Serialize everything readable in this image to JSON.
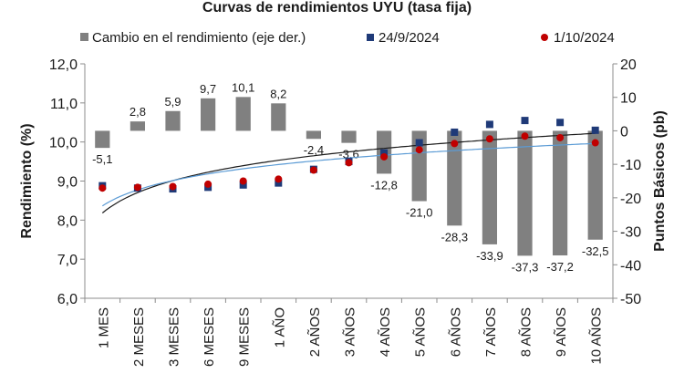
{
  "chart_data": {
    "type": "bar+scatter",
    "title": "Curvas de rendimientos UYU (tasa fija)",
    "categories": [
      "1 MES",
      "2 MESES",
      "3 MESES",
      "6 MESES",
      "9 MESES",
      "1 AÑO",
      "2 AÑOS",
      "3 AÑOS",
      "4 AÑOS",
      "5 AÑOS",
      "6 AÑOS",
      "7 AÑOS",
      "8 AÑOS",
      "9 AÑOS",
      "10 AÑOS"
    ],
    "ylabel": "Rendimiento (%)",
    "y2label": "Puntos Básicos (pb)",
    "ylim": [
      6.0,
      12.0
    ],
    "yticks": [
      "6,0",
      "7,0",
      "8,0",
      "9,0",
      "10,0",
      "11,0",
      "12,0"
    ],
    "y2lim": [
      -50,
      20
    ],
    "y2ticks": [
      "-50",
      "-40",
      "-30",
      "-20",
      "-10",
      "0",
      "10",
      "20"
    ],
    "legend_position": "top",
    "series": [
      {
        "name": "Cambio en el rendimiento (eje der.)",
        "kind": "bar",
        "axis": "right",
        "color": "#808080",
        "values": [
          -5.1,
          2.8,
          5.9,
          9.7,
          10.1,
          8.2,
          -2.4,
          -3.6,
          -12.8,
          -21.0,
          -28.3,
          -33.9,
          -37.3,
          -37.2,
          -32.5
        ],
        "labels": [
          "-5,1",
          "2,8",
          "5,9",
          "9,7",
          "10,1",
          "8,2",
          "-2,4",
          "-3,6",
          "-12,8",
          "-21,0",
          "-28,3",
          "-33,9",
          "-37,3",
          "-37,2",
          "-32,5"
        ]
      },
      {
        "name": "24/9/2024",
        "kind": "marker-square",
        "axis": "left",
        "color": "#1f3a78",
        "values": [
          8.88,
          8.82,
          8.8,
          8.84,
          8.9,
          8.95,
          9.3,
          9.5,
          9.72,
          9.98,
          10.25,
          10.45,
          10.55,
          10.5,
          10.3
        ]
      },
      {
        "name": "1/10/2024",
        "kind": "marker-circle",
        "axis": "left",
        "color": "#c00000",
        "values": [
          8.82,
          8.84,
          8.86,
          8.92,
          9.0,
          9.05,
          9.28,
          9.47,
          9.62,
          9.8,
          9.96,
          10.08,
          10.15,
          10.11,
          9.98
        ]
      }
    ],
    "trendlines": [
      {
        "series": "24/9/2024",
        "color": "#1a1a1a",
        "type": "log"
      },
      {
        "series": "1/10/2024",
        "color": "#5b9bd5",
        "type": "log"
      }
    ]
  }
}
